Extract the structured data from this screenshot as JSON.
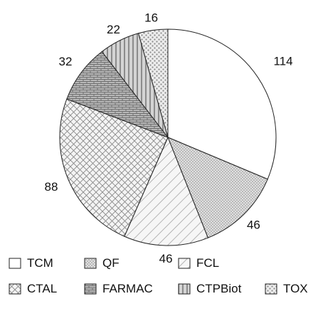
{
  "chart_data": {
    "type": "pie",
    "start": "top, clockwise",
    "categories": [
      "TCM",
      "QF",
      "FCL",
      "CTAL",
      "FARMAC",
      "CTPBiot",
      "TOX"
    ],
    "values": [
      114,
      46,
      46,
      88,
      32,
      22,
      16
    ],
    "data_labels": [
      "114",
      "46",
      "46",
      "88",
      "32",
      "22",
      "16"
    ],
    "legend": {
      "placement": "bottom",
      "rows": [
        [
          "TCM",
          "QF",
          "FCL"
        ],
        [
          "CTAL",
          "FARMAC",
          "CTPBiot",
          "TOX"
        ]
      ]
    },
    "fills": {
      "TCM": "white",
      "QF": "dotted gray",
      "FCL": "forward diagonal lines",
      "CTAL": "diagonal crosshatch",
      "FARMAC": "brick",
      "CTPBiot": "vertical stripes",
      "TOX": "coarse dots"
    },
    "title": "",
    "xlabel": "",
    "ylabel": ""
  }
}
